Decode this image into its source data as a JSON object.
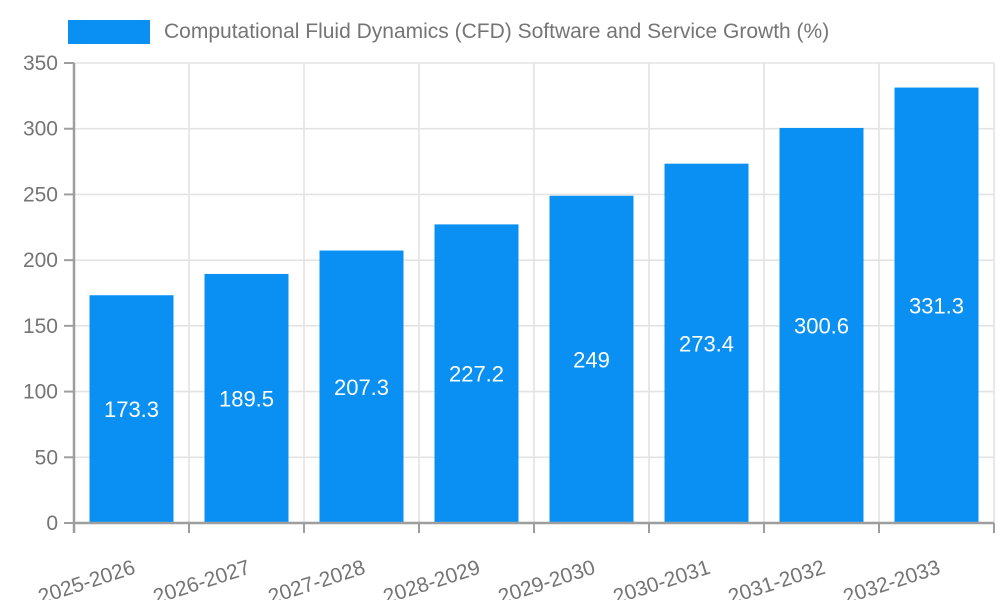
{
  "chart_data": {
    "type": "bar",
    "title": "Computational Fluid Dynamics (CFD) Software and Service Growth (%)",
    "categories": [
      "2025-2026",
      "2026-2027",
      "2027-2028",
      "2028-2029",
      "2029-2030",
      "2030-2031",
      "2031-2032",
      "2032-2033"
    ],
    "series": [
      {
        "name": "Computational Fluid Dynamics (CFD) Software and Service Growth (%)",
        "values": [
          173.3,
          189.5,
          207.3,
          227.2,
          249,
          273.4,
          300.6,
          331.3
        ]
      }
    ],
    "value_labels": [
      "173.3",
      "189.5",
      "207.3",
      "227.2",
      "249",
      "273.4",
      "300.6",
      "331.3"
    ],
    "xlabel": "",
    "ylabel": "",
    "ylim": [
      0,
      350
    ],
    "ytick_step": 50,
    "yticks": [
      0,
      50,
      100,
      150,
      200,
      250,
      300,
      350
    ],
    "grid": true,
    "legend_position": "top-left",
    "colors": {
      "bar": "#0a90f2",
      "value_label": "#ffffff",
      "axis": "#9e9e9e",
      "grid": "#e3e3e3",
      "text": "#757575",
      "background": "#ffffff"
    }
  }
}
